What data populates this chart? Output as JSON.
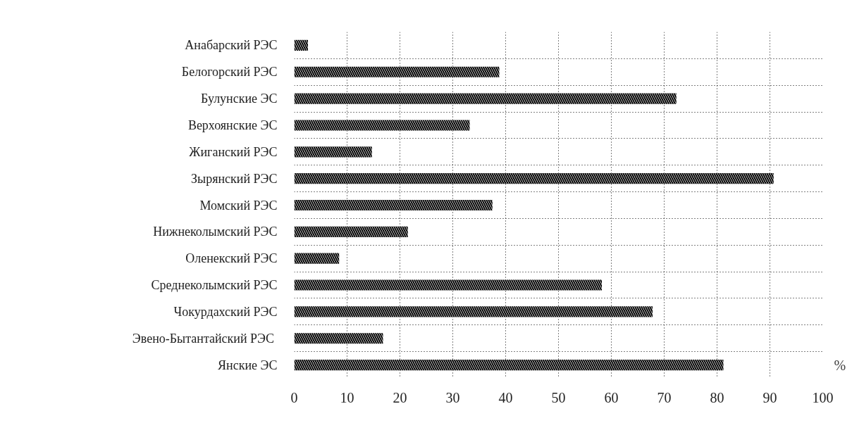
{
  "chart_data": {
    "type": "bar",
    "orientation": "horizontal",
    "categories": [
      "Анабарский РЭС",
      "Белогорский РЭС",
      "Булунские ЭС",
      "Верхоянские ЭС",
      "Жиганский РЭС",
      "Зырянский РЭС",
      "Момский РЭС",
      "Нижнеколымский РЭС",
      "Оленекский РЭС",
      "Среднеколымский РЭС",
      "Чокурдахский РЭС",
      "Эвено-Бытантайский  РЭС",
      "Янские ЭС"
    ],
    "values": [
      2.6,
      38.8,
      72.3,
      33.2,
      14.7,
      90.7,
      37.5,
      21.5,
      8.5,
      58.2,
      67.8,
      16.8,
      81.2
    ],
    "color": "#000000",
    "xlim": [
      0,
      100
    ],
    "xticks": [
      0,
      10,
      20,
      30,
      40,
      50,
      60,
      70,
      80,
      90,
      100
    ],
    "grid": true,
    "annotations": [
      "%"
    ]
  }
}
